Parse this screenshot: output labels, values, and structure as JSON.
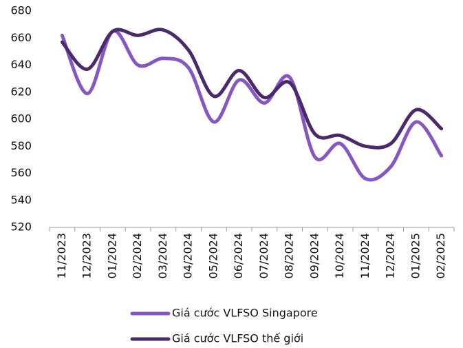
{
  "chart_data": {
    "type": "line",
    "categories": [
      "11/2023",
      "12/2023",
      "01/2024",
      "02/2024",
      "03/2024",
      "04/2024",
      "05/2024",
      "06/2024",
      "07/2024",
      "08/2024",
      "09/2024",
      "10/2024",
      "11/2024",
      "12/2024",
      "01/2025",
      "02/2025"
    ],
    "series": [
      {
        "name": "Giá cước VLFSO Singapore",
        "color": "#8557c2",
        "values": [
          662,
          619,
          665,
          640,
          645,
          638,
          598,
          629,
          612,
          631,
          572,
          582,
          556,
          565,
          598,
          573
        ]
      },
      {
        "name": "Giá cước VLFSO thế giới",
        "color": "#4a2a6b",
        "values": [
          657,
          637,
          665,
          662,
          666,
          651,
          617,
          636,
          616,
          627,
          589,
          588,
          580,
          582,
          607,
          593
        ]
      }
    ],
    "ylim": [
      520,
      680
    ],
    "yticks": [
      520,
      540,
      560,
      580,
      600,
      620,
      640,
      660,
      680
    ],
    "grid": false
  }
}
